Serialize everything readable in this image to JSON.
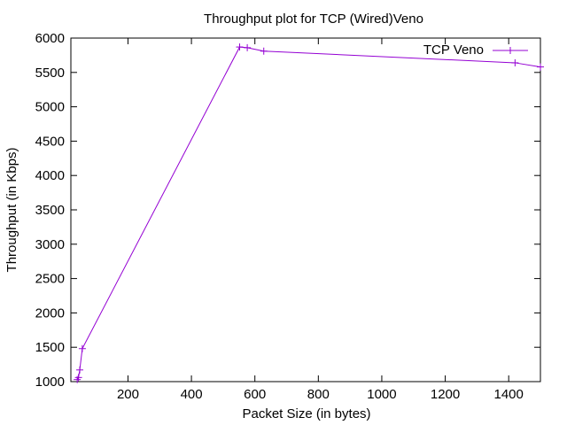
{
  "chart_data": {
    "type": "line",
    "title": "Throughput plot for TCP (Wired)Veno",
    "xlabel": "Packet Size (in bytes)",
    "ylabel": "Throughput (in Kbps)",
    "xlim": [
      20,
      1500
    ],
    "ylim": [
      1000,
      6000
    ],
    "xticks": [
      200,
      400,
      600,
      800,
      1000,
      1200,
      1400
    ],
    "yticks": [
      1000,
      1500,
      2000,
      2500,
      3000,
      3500,
      4000,
      4500,
      5000,
      5500,
      6000
    ],
    "grid": false,
    "legend_position": "top-right",
    "series": [
      {
        "name": "TCP Veno",
        "color": "#9400d3",
        "marker": "plus",
        "points": [
          [
            40,
            1030
          ],
          [
            44,
            1060
          ],
          [
            48,
            1170
          ],
          [
            56,
            1480
          ],
          [
            552,
            5870
          ],
          [
            576,
            5860
          ],
          [
            628,
            5810
          ],
          [
            1420,
            5640
          ],
          [
            1500,
            5580
          ]
        ]
      }
    ]
  }
}
